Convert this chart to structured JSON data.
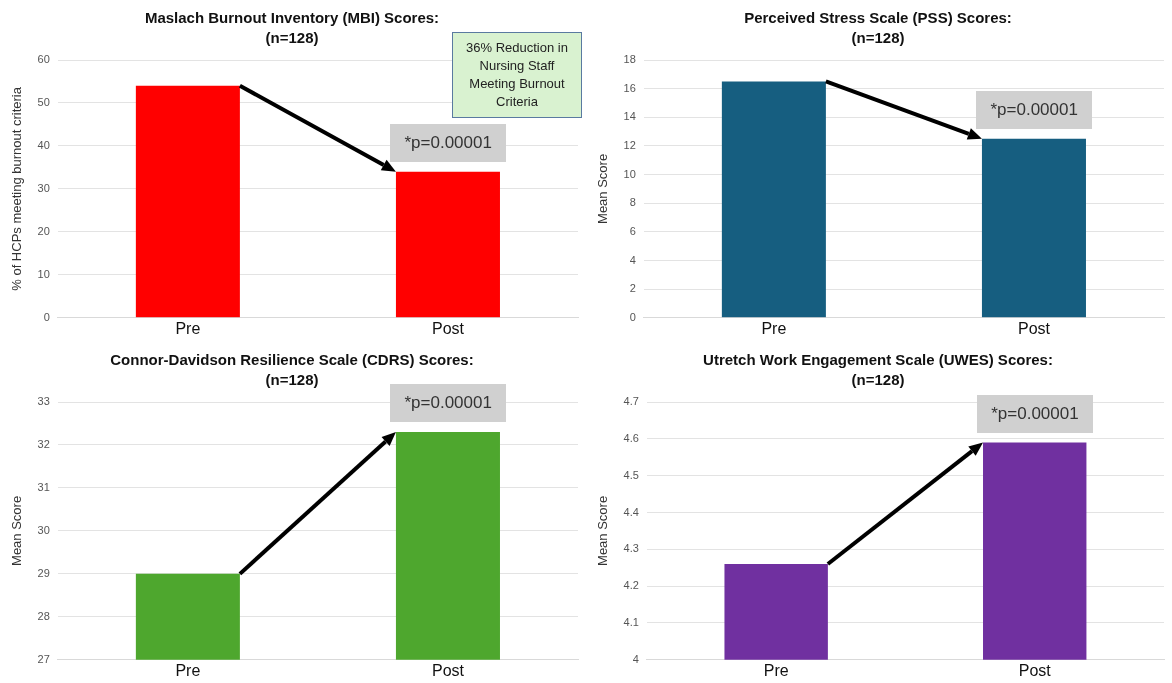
{
  "chart_data": [
    {
      "type": "bar",
      "title": "Maslach Burnout Inventory (MBI) Scores:",
      "subtitle": "(n=128)",
      "ylabel": "% of HCPs meeting burnout criteria",
      "categories": [
        "Pre",
        "Post"
      ],
      "values": [
        54,
        34
      ],
      "color": "#ff0000",
      "ylim": [
        0,
        60
      ],
      "yticks": [
        0,
        10,
        20,
        30,
        40,
        50,
        60
      ],
      "grid": "y",
      "annotations": [
        "*p=0.00001",
        "36% Reduction in Nursing Staff Meeting Burnout Criteria"
      ]
    },
    {
      "type": "bar",
      "title": "Perceived Stress Scale (PSS) Scores:",
      "subtitle": "(n=128)",
      "ylabel": "Mean Score",
      "categories": [
        "Pre",
        "Post"
      ],
      "values": [
        16.5,
        12.5
      ],
      "color": "#165e80",
      "ylim": [
        0,
        18
      ],
      "yticks": [
        0,
        2,
        4,
        6,
        8,
        10,
        12,
        14,
        16,
        18
      ],
      "grid": "y",
      "annotations": [
        "*p=0.00001"
      ]
    },
    {
      "type": "bar",
      "title": "Connor-Davidson Resilience Scale (CDRS) Scores:",
      "subtitle": "(n=128)",
      "ylabel": "Mean Score",
      "categories": [
        "Pre",
        "Post"
      ],
      "values": [
        29,
        32.3
      ],
      "color": "#4ea72e",
      "ylim": [
        27,
        33
      ],
      "yticks": [
        27,
        28,
        29,
        30,
        31,
        32,
        33
      ],
      "grid": "y",
      "annotations": [
        "*p=0.00001"
      ]
    },
    {
      "type": "bar",
      "title": "Utretch Work Engagement Scale (UWES) Scores:",
      "subtitle": "(n=128)",
      "ylabel": "Mean Score",
      "categories": [
        "Pre",
        "Post"
      ],
      "values": [
        4.26,
        4.59
      ],
      "color": "#7030a0",
      "ylim": [
        4,
        4.7
      ],
      "yticks": [
        4,
        4.1,
        4.2,
        4.3,
        4.4,
        4.5,
        4.6,
        4.7
      ],
      "grid": "y",
      "annotations": [
        "*p=0.00001"
      ]
    }
  ]
}
